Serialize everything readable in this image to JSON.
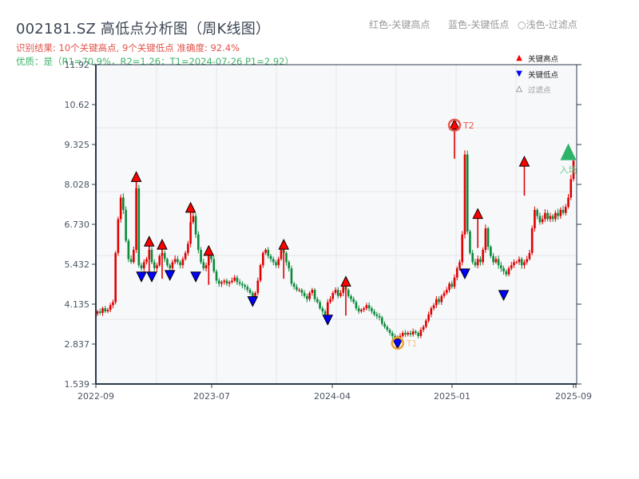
{
  "header": {
    "title": "002181.SZ 高低点分析图（周K线图）",
    "result_line": "识别结果: 10个关键高点, 9个关键低点   准确度: 92.4%",
    "quality_line": "优质：是（R1=70.9%，R2=1.26；T1=2024-07-26 P1=2.92）"
  },
  "top_legend": {
    "red": "红色-关键高点",
    "blue": "蓝色-关键低点",
    "light": "○浅色-过滤点"
  },
  "legend": [
    {
      "marker": "▲",
      "label": "关键高点",
      "color": "#ff0000"
    },
    {
      "marker": "▼",
      "label": "关键低点",
      "color": "#0000ff"
    },
    {
      "marker": "△",
      "label": "过滤点",
      "color": "#999999"
    }
  ],
  "annotations": {
    "t1_label": "T1",
    "t2_label": "T2",
    "entry_label": "入场"
  },
  "colors": {
    "up": "#e00000",
    "down": "#0a8a3a",
    "high_marker": "#ff0000",
    "low_marker": "#0000ff",
    "t1_ring": "#f0a030",
    "t2_ring": "#e85a50",
    "entry": "#2db36a",
    "plot_bg": "#f7f8fa",
    "grid": "#e3e6ea",
    "axis": "#2c3a4a"
  },
  "chart_data": {
    "type": "candlestick",
    "title": "002181.SZ 高低点分析图（周K线图）",
    "xlabel": "",
    "ylabel": "",
    "ylim": [
      1.539,
      11.92
    ],
    "yticks": [
      "11.92",
      "10.62",
      "9.325",
      "8.028",
      "6.730",
      "5.432",
      "4.135",
      "2.837",
      "1.539"
    ],
    "xticks": [
      "2022-09",
      "2023-07",
      "2024-04",
      "2025-01",
      "2025-09"
    ],
    "x_extra_tick_overlap": "2025-09 (overlapping labels)",
    "legend_position": "top-right",
    "grid": true,
    "summary": {
      "key_highs": 10,
      "key_lows": 9,
      "accuracy_pct": 92.4,
      "R1_pct": 70.9,
      "R2": 1.26,
      "T1_date": "2024-07-26",
      "P1": 2.92
    },
    "key_highs_approx": [
      {
        "week_index": 15,
        "price": 8.2
      },
      {
        "week_index": 20,
        "price": 6.1
      },
      {
        "week_index": 25,
        "price": 6.0
      },
      {
        "week_index": 36,
        "price": 7.2
      },
      {
        "week_index": 43,
        "price": 5.8
      },
      {
        "week_index": 72,
        "price": 6.0
      },
      {
        "week_index": 96,
        "price": 4.8
      },
      {
        "week_index": 138,
        "price": 9.9,
        "tag": "T2"
      },
      {
        "week_index": 147,
        "price": 7.0
      },
      {
        "week_index": 165,
        "price": 8.7
      }
    ],
    "key_lows_approx": [
      {
        "week_index": 17,
        "price": 5.1
      },
      {
        "week_index": 21,
        "price": 5.1
      },
      {
        "week_index": 28,
        "price": 5.15
      },
      {
        "week_index": 38,
        "price": 5.1
      },
      {
        "week_index": 60,
        "price": 4.3
      },
      {
        "week_index": 89,
        "price": 3.7
      },
      {
        "week_index": 116,
        "price": 2.92,
        "tag": "T1"
      },
      {
        "week_index": 142,
        "price": 5.2
      },
      {
        "week_index": 157,
        "price": 4.5
      }
    ],
    "entry_point": {
      "week_index": 182,
      "price": 9.05,
      "label": "入场"
    },
    "close_path_approx": [
      3.9,
      3.85,
      4.0,
      3.9,
      3.95,
      4.1,
      4.2,
      5.8,
      6.9,
      7.6,
      7.2,
      6.2,
      5.6,
      5.5,
      5.9,
      7.9,
      5.4,
      5.3,
      5.5,
      5.6,
      5.9,
      5.5,
      5.3,
      5.4,
      5.7,
      5.8,
      5.6,
      5.4,
      5.3,
      5.5,
      5.6,
      5.5,
      5.4,
      5.6,
      5.8,
      6.1,
      6.8,
      7.0,
      6.4,
      5.9,
      5.5,
      5.3,
      5.4,
      5.7,
      5.6,
      5.2,
      4.9,
      4.8,
      4.85,
      4.9,
      4.8,
      4.85,
      4.9,
      5.0,
      4.85,
      4.8,
      4.75,
      4.7,
      4.6,
      4.5,
      4.3,
      4.5,
      4.9,
      5.4,
      5.8,
      5.9,
      5.7,
      5.6,
      5.5,
      5.4,
      5.6,
      5.9,
      5.8,
      5.5,
      5.3,
      4.8,
      4.7,
      4.6,
      4.6,
      4.5,
      4.4,
      4.3,
      4.5,
      4.6,
      4.3,
      4.2,
      4.0,
      3.9,
      3.8,
      4.2,
      4.3,
      4.5,
      4.6,
      4.4,
      4.5,
      4.7,
      4.6,
      4.4,
      4.3,
      4.2,
      4.0,
      3.9,
      3.95,
      4.0,
      4.1,
      4.0,
      3.9,
      3.8,
      3.75,
      3.7,
      3.5,
      3.4,
      3.3,
      3.2,
      3.1,
      3.0,
      3.05,
      3.1,
      3.2,
      3.15,
      3.2,
      3.15,
      3.25,
      3.2,
      3.1,
      3.3,
      3.4,
      3.6,
      3.8,
      4.0,
      4.1,
      4.3,
      4.2,
      4.4,
      4.5,
      4.6,
      4.8,
      4.7,
      5.0,
      5.3,
      5.5,
      6.4,
      9.0,
      6.5,
      5.8,
      5.5,
      5.4,
      5.6,
      5.5,
      5.9,
      6.6,
      6.0,
      5.7,
      5.5,
      5.6,
      5.4,
      5.3,
      5.2,
      5.1,
      5.3,
      5.4,
      5.5,
      5.5,
      5.6,
      5.4,
      5.5,
      5.6,
      5.8,
      6.6,
      7.2,
      7.0,
      6.8,
      6.9,
      7.1,
      6.9,
      7.0,
      6.9,
      7.1,
      7.0,
      7.2,
      7.1,
      7.3,
      7.6,
      8.2,
      8.8
    ]
  }
}
